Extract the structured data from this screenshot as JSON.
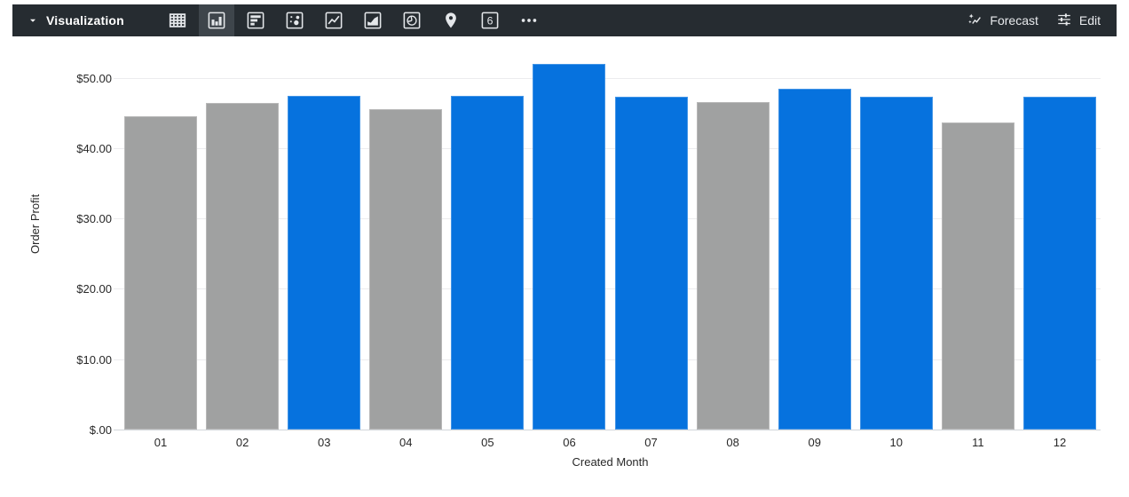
{
  "toolbar": {
    "visualization_label": "Visualization",
    "forecast_label": "Forecast",
    "edit_label": "Edit",
    "icons": [
      {
        "name": "table",
        "selected": false
      },
      {
        "name": "column-chart",
        "selected": true
      },
      {
        "name": "bar-chart",
        "selected": false
      },
      {
        "name": "scatter-chart",
        "selected": false
      },
      {
        "name": "line-chart",
        "selected": false
      },
      {
        "name": "area-chart",
        "selected": false
      },
      {
        "name": "pie-chart",
        "selected": false
      },
      {
        "name": "map",
        "selected": false
      },
      {
        "name": "single-value",
        "selected": false,
        "glyph": "6"
      },
      {
        "name": "more-options",
        "selected": false
      }
    ],
    "colors": {
      "background": "#262c31",
      "selected_button": "#3e454b",
      "icon": "#e8eaed"
    }
  },
  "chart_data": {
    "type": "bar",
    "title": "",
    "xlabel": "Created Month",
    "ylabel": "Order Profit",
    "categories": [
      "01",
      "02",
      "03",
      "04",
      "05",
      "06",
      "07",
      "08",
      "09",
      "10",
      "11",
      "12"
    ],
    "values": [
      44.5,
      46.4,
      47.5,
      45.6,
      47.5,
      52.0,
      47.3,
      46.6,
      48.5,
      47.3,
      43.6,
      47.3
    ],
    "bar_colors": [
      "#a0a1a1",
      "#a0a1a1",
      "#0672de",
      "#a0a1a1",
      "#0672de",
      "#0672de",
      "#0672de",
      "#a0a1a1",
      "#0672de",
      "#0672de",
      "#a0a1a1",
      "#0672de"
    ],
    "y_ticks": [
      {
        "value": 50,
        "label": "$50.00"
      },
      {
        "value": 40,
        "label": "$40.00"
      },
      {
        "value": 30,
        "label": "$30.00"
      },
      {
        "value": 20,
        "label": "$20.00"
      },
      {
        "value": 10,
        "label": "$10.00"
      },
      {
        "value": 0,
        "label": "$.00"
      }
    ],
    "ylim": [
      0,
      53.5
    ],
    "grid": true,
    "legend": "none",
    "colors": {
      "highlight_series": "#0672de",
      "muted_series": "#a0a1a1",
      "gridline": "#ececee"
    }
  }
}
